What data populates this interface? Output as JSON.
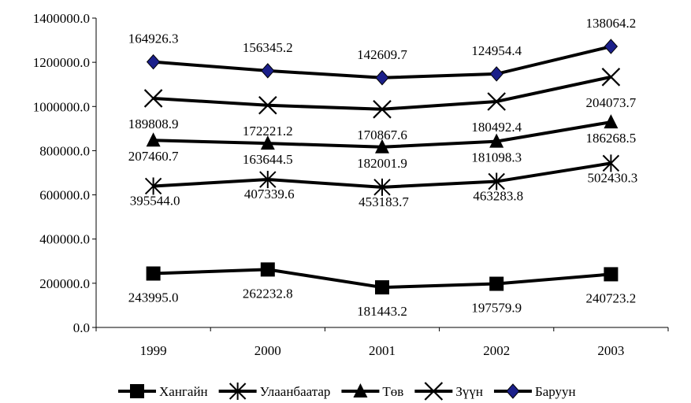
{
  "chart_data": {
    "type": "line",
    "title": "",
    "xlabel": "",
    "ylabel": "",
    "categories": [
      "1999",
      "2000",
      "2001",
      "2002",
      "2003"
    ],
    "ylim": [
      0,
      1400000
    ],
    "ytick_labels": [
      "0.0",
      "200000.0",
      "400000.0",
      "600000.0",
      "800000.0",
      "1000000.0",
      "1200000.0",
      "1400000.0"
    ],
    "legend_position": "bottom",
    "grid": false,
    "series": [
      {
        "name": "Хангайн",
        "marker": "square",
        "color": "#000000",
        "values": [
          243995.0,
          262232.8,
          181443.2,
          197579.9,
          240723.2
        ],
        "labels": [
          "243995.0",
          "262232.8",
          "181443.2",
          "197579.9",
          "240723.2"
        ]
      },
      {
        "name": "Улаанбаатар",
        "marker": "asterisk",
        "color": "#000000",
        "values": [
          639539.0,
          669572.4,
          634626.9,
          660863.7,
          743153.5
        ],
        "labels": [
          "395544.0",
          "407339.6",
          "453183.7",
          "463283.8",
          "502430.3"
        ]
      },
      {
        "name": "Төв",
        "marker": "triangle",
        "color": "#000000",
        "values": [
          846999.7,
          833216.9,
          816628.8,
          841962.0,
          929422.0
        ],
        "labels": [
          "207460.7",
          "163644.5",
          "182001.9",
          "181098.3",
          "186268.5"
        ]
      },
      {
        "name": "Зүүн",
        "marker": "x",
        "color": "#000000",
        "values": [
          1036808.6,
          1005438.1,
          987496.4,
          1022454.4,
          1133495.7
        ],
        "labels": [
          "189808.9",
          "172221.2",
          "170867.6",
          "180492.4",
          "204073.7"
        ]
      },
      {
        "name": "Баруун",
        "marker": "diamond",
        "color": "#000000",
        "marker_fill": "#1b1f8a",
        "values": [
          1201734.9,
          1161783.3,
          1130106.1,
          1147408.8,
          1271559.9
        ],
        "labels": [
          "164926.3",
          "156345.2",
          "142609.7",
          "124954.4",
          "138064.2"
        ]
      }
    ]
  }
}
